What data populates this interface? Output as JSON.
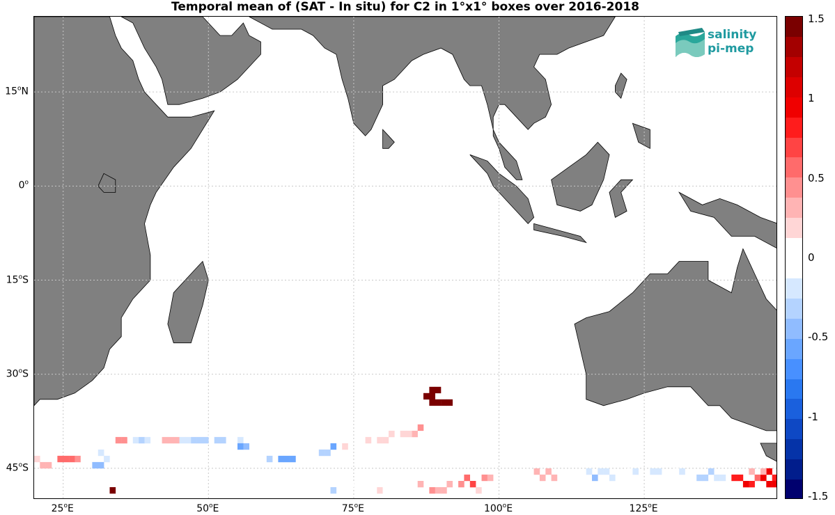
{
  "title": "Temporal mean of (SAT - In situ) for C2 in 1°x1° boxes over 2016-2018",
  "logo": {
    "line1": "salinity",
    "line2": "pi-mep"
  },
  "lat_ticks": [
    {
      "deg": "15",
      "hemi": "N",
      "lat": 15
    },
    {
      "deg": "0",
      "hemi": "",
      "lat": 0
    },
    {
      "deg": "15",
      "hemi": "S",
      "lat": -15
    },
    {
      "deg": "30",
      "hemi": "S",
      "lat": -30
    },
    {
      "deg": "45",
      "hemi": "S",
      "lat": -45
    }
  ],
  "lon_ticks": [
    {
      "deg": "25",
      "hemi": "E",
      "lon": 25
    },
    {
      "deg": "50",
      "hemi": "E",
      "lon": 50
    },
    {
      "deg": "75",
      "hemi": "E",
      "lon": 75
    },
    {
      "deg": "100",
      "hemi": "E",
      "lon": 100
    },
    {
      "deg": "125",
      "hemi": "E",
      "lon": 125
    }
  ],
  "colorbar": {
    "ticks": [
      "1.5",
      "1",
      "0.5",
      "0",
      "-0.5",
      "-1",
      "-1.5"
    ],
    "min": -1.5,
    "max": 1.5,
    "colors_top_to_bottom": [
      "#7a0000",
      "#a30000",
      "#c40000",
      "#dd0000",
      "#f00000",
      "#ff1c1c",
      "#ff4444",
      "#ff6b6b",
      "#ff9090",
      "#ffb4b4",
      "#ffd6d6",
      "#ffffff",
      "#ffffff",
      "#d6e8ff",
      "#b4d3ff",
      "#90bcff",
      "#6aa6ff",
      "#4890ff",
      "#2a78f0",
      "#1a60dd",
      "#0e48c4",
      "#0533a8",
      "#011d8c",
      "#00006e"
    ]
  },
  "colors": {
    "land": "#808080",
    "coast": "#000000",
    "grid": "#c8c8c8"
  },
  "map_extent": {
    "lon_min": 20,
    "lon_max": 148,
    "lat_min": -50,
    "lat_max": 27
  },
  "land_polygons": [
    [
      [
        20,
        27
      ],
      [
        33,
        27
      ],
      [
        34,
        24
      ],
      [
        35,
        22
      ],
      [
        37,
        20
      ],
      [
        38,
        17
      ],
      [
        39,
        15
      ],
      [
        42,
        12
      ],
      [
        43,
        11
      ],
      [
        44,
        11
      ],
      [
        47,
        11
      ],
      [
        51,
        12
      ],
      [
        49,
        9
      ],
      [
        47,
        6
      ],
      [
        44,
        3
      ],
      [
        41,
        -1
      ],
      [
        40,
        -3
      ],
      [
        39,
        -6
      ],
      [
        40,
        -11
      ],
      [
        40,
        -15
      ],
      [
        37,
        -18
      ],
      [
        35,
        -21
      ],
      [
        35,
        -24
      ],
      [
        33,
        -26
      ],
      [
        32,
        -29
      ],
      [
        30,
        -31
      ],
      [
        27,
        -33
      ],
      [
        24,
        -34
      ],
      [
        21,
        -34
      ],
      [
        20,
        -35
      ]
    ],
    [
      [
        35,
        27
      ],
      [
        37,
        26
      ],
      [
        39,
        22
      ],
      [
        41,
        19
      ],
      [
        42,
        17
      ],
      [
        43,
        13
      ],
      [
        45,
        13
      ],
      [
        49,
        14
      ],
      [
        52,
        15
      ],
      [
        55,
        17
      ],
      [
        57,
        19
      ],
      [
        59,
        21
      ],
      [
        59,
        23
      ],
      [
        57,
        24
      ],
      [
        56,
        26
      ],
      [
        54,
        24
      ],
      [
        52,
        24
      ],
      [
        50,
        26
      ],
      [
        49,
        27
      ]
    ],
    [
      [
        57,
        27
      ],
      [
        61,
        25
      ],
      [
        66,
        25
      ],
      [
        68,
        24
      ],
      [
        70,
        22
      ],
      [
        72,
        21
      ],
      [
        73,
        17
      ],
      [
        74,
        14
      ],
      [
        75,
        10
      ],
      [
        77,
        8
      ],
      [
        78,
        9
      ],
      [
        80,
        13
      ],
      [
        80,
        16
      ],
      [
        82,
        17
      ],
      [
        85,
        20
      ],
      [
        87,
        21
      ],
      [
        90,
        22
      ],
      [
        92,
        21
      ],
      [
        94,
        17
      ],
      [
        95,
        16
      ],
      [
        97,
        16
      ],
      [
        98,
        13
      ],
      [
        99,
        9
      ],
      [
        100,
        7
      ],
      [
        101,
        6
      ],
      [
        103,
        4
      ],
      [
        104,
        1
      ],
      [
        103,
        1
      ],
      [
        101,
        3
      ],
      [
        100,
        6
      ],
      [
        99,
        8
      ],
      [
        99,
        11
      ],
      [
        100,
        13
      ],
      [
        101,
        13
      ],
      [
        103,
        11
      ],
      [
        105,
        9
      ],
      [
        106,
        10
      ],
      [
        108,
        11
      ],
      [
        109,
        13
      ],
      [
        108,
        17
      ],
      [
        106,
        19
      ],
      [
        107,
        21
      ],
      [
        110,
        21
      ],
      [
        112,
        22
      ],
      [
        118,
        24
      ],
      [
        120,
        27
      ]
    ],
    [
      [
        80,
        9
      ],
      [
        81,
        8
      ],
      [
        82,
        7
      ],
      [
        81,
        6
      ],
      [
        80,
        6
      ],
      [
        80,
        8
      ]
    ],
    [
      [
        95,
        5
      ],
      [
        98,
        4
      ],
      [
        100,
        2
      ],
      [
        103,
        0
      ],
      [
        105,
        -2
      ],
      [
        106,
        -5
      ],
      [
        105,
        -6
      ],
      [
        103,
        -4
      ],
      [
        101,
        -2
      ],
      [
        99,
        0
      ],
      [
        98,
        2
      ],
      [
        96,
        4
      ]
    ],
    [
      [
        106,
        -6
      ],
      [
        110,
        -7
      ],
      [
        114,
        -8
      ],
      [
        115,
        -9
      ],
      [
        111,
        -8
      ],
      [
        106,
        -7
      ]
    ],
    [
      [
        109,
        1
      ],
      [
        110,
        -3
      ],
      [
        114,
        -4
      ],
      [
        116,
        -3
      ],
      [
        118,
        1
      ],
      [
        119,
        5
      ],
      [
        117,
        7
      ],
      [
        115,
        5
      ],
      [
        112,
        3
      ]
    ],
    [
      [
        119,
        -1
      ],
      [
        121,
        1
      ],
      [
        123,
        1
      ],
      [
        121,
        -1
      ],
      [
        122,
        -4
      ],
      [
        120,
        -5
      ]
    ],
    [
      [
        131,
        -1
      ],
      [
        135,
        -3
      ],
      [
        138,
        -2
      ],
      [
        141,
        -3
      ],
      [
        145,
        -5
      ],
      [
        148,
        -6
      ],
      [
        148,
        -10
      ],
      [
        144,
        -8
      ],
      [
        140,
        -8
      ],
      [
        137,
        -5
      ],
      [
        133,
        -4
      ]
    ],
    [
      [
        120,
        16
      ],
      [
        121,
        18
      ],
      [
        122,
        17
      ],
      [
        121,
        14
      ],
      [
        120,
        15
      ]
    ],
    [
      [
        123,
        10
      ],
      [
        126,
        9
      ],
      [
        126,
        6
      ],
      [
        124,
        7
      ]
    ],
    [
      [
        115,
        -21
      ],
      [
        119,
        -20
      ],
      [
        123,
        -17
      ],
      [
        126,
        -14
      ],
      [
        129,
        -14
      ],
      [
        131,
        -12
      ],
      [
        134,
        -12
      ],
      [
        136,
        -12
      ],
      [
        136,
        -15
      ],
      [
        140,
        -17
      ],
      [
        141,
        -13
      ],
      [
        142,
        -10
      ],
      [
        144,
        -14
      ],
      [
        146,
        -18
      ],
      [
        148,
        -20
      ],
      [
        148,
        -39
      ],
      [
        146,
        -39
      ],
      [
        143,
        -38
      ],
      [
        140,
        -37
      ],
      [
        138,
        -35
      ],
      [
        136,
        -35
      ],
      [
        133,
        -32
      ],
      [
        129,
        -32
      ],
      [
        125,
        -33
      ],
      [
        122,
        -34
      ],
      [
        118,
        -35
      ],
      [
        115,
        -34
      ],
      [
        115,
        -30
      ],
      [
        114,
        -26
      ],
      [
        113,
        -22
      ]
    ],
    [
      [
        145,
        -41
      ],
      [
        148,
        -41
      ],
      [
        148,
        -44
      ],
      [
        146,
        -43
      ]
    ],
    [
      [
        44,
        -25
      ],
      [
        43,
        -22
      ],
      [
        44,
        -17
      ],
      [
        46,
        -15
      ],
      [
        48,
        -13
      ],
      [
        49,
        -12
      ],
      [
        50,
        -15
      ],
      [
        49,
        -19
      ],
      [
        47,
        -25
      ]
    ],
    [
      [
        32,
        2
      ],
      [
        34,
        1
      ],
      [
        34,
        -1
      ],
      [
        32,
        -1
      ],
      [
        31,
        0
      ]
    ]
  ],
  "anomaly_cells": [
    [
      88,
      -33,
      1.5
    ],
    [
      89,
      -33,
      1.5
    ],
    [
      87,
      -34,
      1.5
    ],
    [
      88,
      -34,
      1.5
    ],
    [
      88,
      -35,
      1.5
    ],
    [
      89,
      -35,
      1.5
    ],
    [
      90,
      -35,
      1.5
    ],
    [
      91,
      -35,
      1.5
    ],
    [
      86,
      -39,
      0.4
    ],
    [
      85,
      -40,
      0.3
    ],
    [
      84,
      -40,
      0.25
    ],
    [
      83,
      -40,
      0.2
    ],
    [
      80,
      -41,
      0.15
    ],
    [
      81,
      -40,
      0.2
    ],
    [
      79,
      -41,
      0.15
    ],
    [
      78,
      -40,
      0.1
    ],
    [
      77,
      -41,
      0.2
    ],
    [
      73,
      -42,
      0.15
    ],
    [
      69,
      -43,
      -0.3
    ],
    [
      70,
      -43,
      -0.3
    ],
    [
      71,
      -42,
      -0.5
    ],
    [
      66,
      -43,
      0.1
    ],
    [
      35,
      -41,
      0.4
    ],
    [
      34,
      -41,
      0.4
    ],
    [
      36,
      -40,
      0.1
    ],
    [
      37,
      -41,
      -0.2
    ],
    [
      38,
      -41,
      -0.3
    ],
    [
      39,
      -41,
      -0.2
    ],
    [
      42,
      -41,
      0.3
    ],
    [
      43,
      -41,
      0.35
    ],
    [
      44,
      -41,
      0.3
    ],
    [
      45,
      -41,
      -0.15
    ],
    [
      46,
      -41,
      -0.2
    ],
    [
      47,
      -41,
      -0.25
    ],
    [
      48,
      -41,
      -0.3
    ],
    [
      49,
      -41,
      -0.35
    ],
    [
      50,
      -40,
      -0.1
    ],
    [
      51,
      -41,
      -0.3
    ],
    [
      52,
      -41,
      -0.3
    ],
    [
      55,
      -41,
      -0.2
    ],
    [
      55,
      -42,
      -0.5
    ],
    [
      56,
      -42,
      -0.4
    ],
    [
      58,
      -41,
      0.1
    ],
    [
      59,
      -42,
      -0.1
    ],
    [
      60,
      -43,
      0.1
    ],
    [
      62,
      -44,
      -0.55
    ],
    [
      63,
      -44,
      -0.55
    ],
    [
      64,
      -44,
      -0.55
    ],
    [
      60,
      -44,
      -0.3
    ],
    [
      24,
      -44,
      0.6
    ],
    [
      25,
      -44,
      0.6
    ],
    [
      26,
      -44,
      0.6
    ],
    [
      27,
      -44,
      0.5
    ],
    [
      28,
      -44,
      -0.1
    ],
    [
      29,
      -44,
      0.1
    ],
    [
      30,
      -45,
      -0.45
    ],
    [
      31,
      -45,
      -0.45
    ],
    [
      32,
      -44,
      -0.2
    ],
    [
      31,
      -43,
      -0.2
    ],
    [
      20,
      -44,
      0.15
    ],
    [
      21,
      -45,
      0.35
    ],
    [
      22,
      -45,
      0.35
    ],
    [
      33,
      -49,
      1.5
    ],
    [
      71,
      -49,
      -0.3
    ],
    [
      74,
      -48,
      -0.1
    ],
    [
      78,
      -48,
      0.1
    ],
    [
      79,
      -49,
      0.15
    ],
    [
      80,
      -49,
      0.1
    ],
    [
      82,
      -48,
      0.1
    ],
    [
      84,
      -49,
      0.1
    ],
    [
      86,
      -48,
      0.3
    ],
    [
      88,
      -49,
      0.5
    ],
    [
      89,
      -49,
      0.35
    ],
    [
      90,
      -49,
      0.3
    ],
    [
      91,
      -48,
      0.35
    ],
    [
      93,
      -48,
      0.5
    ],
    [
      94,
      -47,
      0.6
    ],
    [
      95,
      -48,
      0.7
    ],
    [
      97,
      -47,
      0.4
    ],
    [
      98,
      -47,
      0.3
    ],
    [
      96,
      -49,
      0.2
    ],
    [
      104,
      -47,
      0.1
    ],
    [
      106,
      -46,
      0.3
    ],
    [
      107,
      -47,
      0.3
    ],
    [
      108,
      -46,
      0.3
    ],
    [
      109,
      -47,
      0.3
    ],
    [
      115,
      -46,
      -0.2
    ],
    [
      116,
      -47,
      -0.45
    ],
    [
      117,
      -46,
      -0.2
    ],
    [
      118,
      -46,
      -0.2
    ],
    [
      119,
      -47,
      -0.15
    ],
    [
      122,
      -46,
      -0.1
    ],
    [
      123,
      -46,
      -0.15
    ],
    [
      126,
      -46,
      -0.2
    ],
    [
      127,
      -46,
      -0.15
    ],
    [
      128,
      -47,
      0.1
    ],
    [
      130,
      -46,
      -0.1
    ],
    [
      131,
      -46,
      -0.2
    ],
    [
      134,
      -47,
      -0.3
    ],
    [
      135,
      -47,
      -0.3
    ],
    [
      136,
      -46,
      -0.25
    ],
    [
      137,
      -47,
      -0.2
    ],
    [
      138,
      -47,
      -0.2
    ],
    [
      140,
      -47,
      0.8
    ],
    [
      141,
      -47,
      0.8
    ],
    [
      142,
      -48,
      0.9
    ],
    [
      143,
      -48,
      0.8
    ],
    [
      144,
      -47,
      0.6
    ],
    [
      145,
      -47,
      0.9
    ],
    [
      146,
      -46,
      1.0
    ],
    [
      147,
      -47,
      0.8
    ],
    [
      146,
      -48,
      0.9
    ],
    [
      147,
      -48,
      0.9
    ],
    [
      143,
      -46,
      0.3
    ],
    [
      145,
      -46,
      0.3
    ]
  ]
}
